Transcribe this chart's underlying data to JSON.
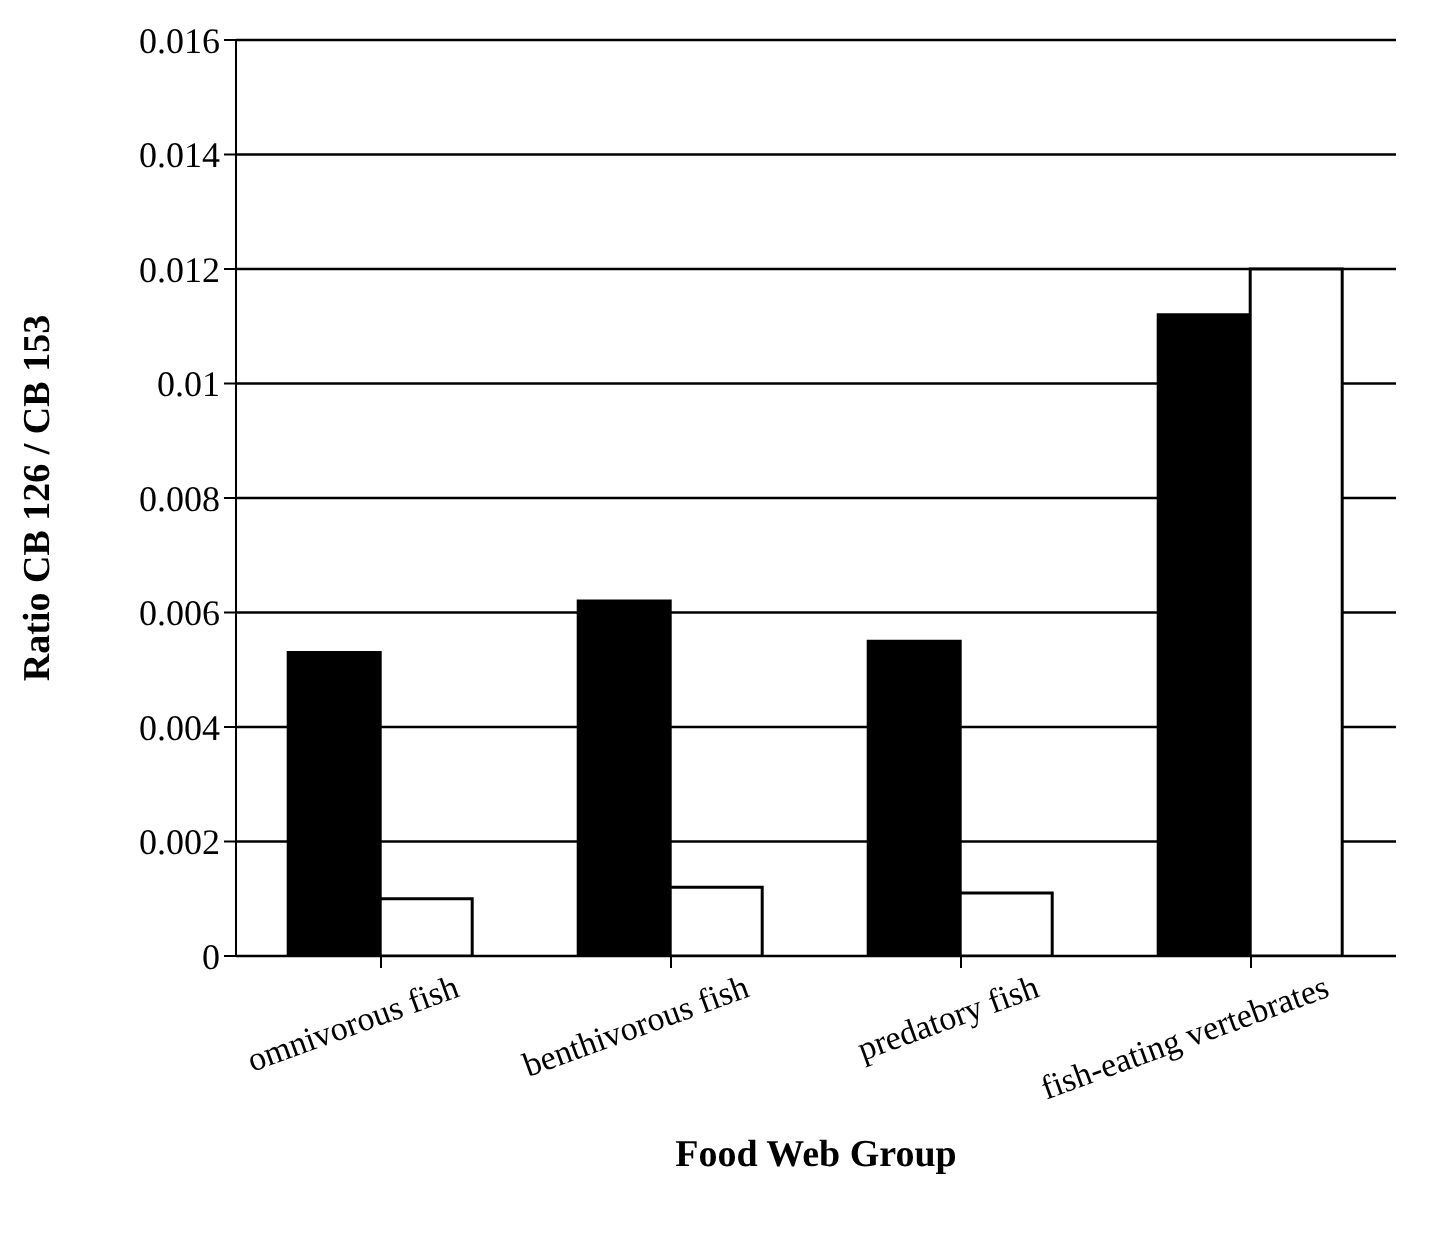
{
  "chart_data": {
    "type": "bar",
    "xlabel": "Food Web Group",
    "ylabel": "Ratio CB 126 / CB 153",
    "categories": [
      "omnivorous fish",
      "benthivorous fish",
      "predatory fish",
      "fish-eating vertebrates"
    ],
    "series": [
      {
        "color": "#000000",
        "values": [
          0.0053,
          0.0062,
          0.0055,
          0.0112
        ]
      },
      {
        "color": "#ffffff",
        "values": [
          0.001,
          0.0012,
          0.0011,
          0.012
        ]
      }
    ],
    "ylim": [
      0,
      0.016
    ],
    "yticks": [
      0,
      0.002,
      0.004,
      0.006,
      0.008,
      0.01,
      0.012,
      0.014,
      0.016
    ],
    "grid": "y"
  }
}
